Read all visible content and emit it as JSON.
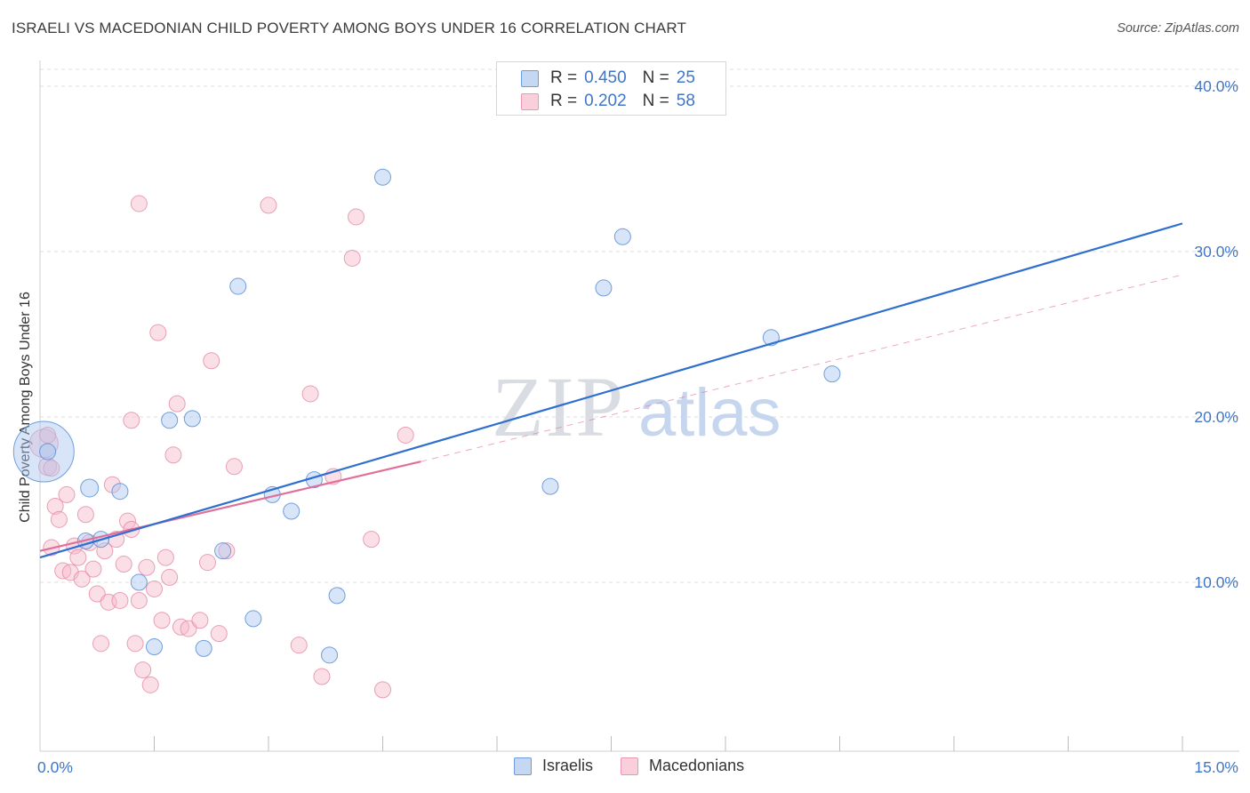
{
  "title": "ISRAELI VS MACEDONIAN CHILD POVERTY AMONG BOYS UNDER 16 CORRELATION CHART",
  "source": "Source: ZipAtlas.com",
  "legend_top": {
    "series1": {
      "r_label": "R =",
      "r_value": "0.450",
      "n_label": "N =",
      "n_value": "25",
      "color": "#a9c6ef"
    },
    "series2": {
      "r_label": "R =",
      "r_value": "0.202",
      "n_label": "N =",
      "n_value": "58",
      "color": "#f6b8ca"
    }
  },
  "legend_bottom": {
    "israelis": "Israelis",
    "macedonians": "Macedonians"
  },
  "watermark": {
    "zip": "ZIP",
    "atlas": "atlas"
  },
  "colors": {
    "blue_fill": "#a9c6ef",
    "blue_stroke": "#5b8fd6",
    "blue_line": "#2f6fcf",
    "pink_fill": "#f6b8ca",
    "pink_stroke": "#e58aa5",
    "pink_line": "#e0709a",
    "grid": "#dcdcdc",
    "tick_text": "#3f76c9"
  },
  "chart_data": {
    "type": "scatter",
    "title": "ISRAELI VS MACEDONIAN CHILD POVERTY AMONG BOYS UNDER 16 CORRELATION CHART",
    "xlabel": "",
    "ylabel": "Child Poverty Among Boys Under 16",
    "xlim": [
      0,
      15
    ],
    "ylim": [
      0,
      41
    ],
    "x_tick_labels": [
      "0.0%",
      "15.0%"
    ],
    "y_ticks": [
      10,
      20,
      30,
      40
    ],
    "y_tick_labels": [
      "10.0%",
      "20.0%",
      "30.0%",
      "40.0%"
    ],
    "grid": true,
    "series": [
      {
        "name": "Israelis",
        "points": [
          [
            0.05,
            17.9
          ],
          [
            0.65,
            15.7
          ],
          [
            0.6,
            12.5
          ],
          [
            0.8,
            12.6
          ],
          [
            1.05,
            15.5
          ],
          [
            1.3,
            10.0
          ],
          [
            1.5,
            6.1
          ],
          [
            1.7,
            19.8
          ],
          [
            2.0,
            19.9
          ],
          [
            2.15,
            6.0
          ],
          [
            2.4,
            11.9
          ],
          [
            2.6,
            27.9
          ],
          [
            2.8,
            7.8
          ],
          [
            3.05,
            15.3
          ],
          [
            3.3,
            14.3
          ],
          [
            3.6,
            16.2
          ],
          [
            3.8,
            5.6
          ],
          [
            3.9,
            9.2
          ],
          [
            4.5,
            34.5
          ],
          [
            6.7,
            15.8
          ],
          [
            7.4,
            27.8
          ],
          [
            7.65,
            30.9
          ],
          [
            9.6,
            24.8
          ],
          [
            10.4,
            22.6
          ],
          [
            0.1,
            17.9
          ]
        ],
        "sizes": [
          34,
          10,
          9,
          9,
          9,
          9,
          9,
          9,
          9,
          9,
          9,
          9,
          9,
          9,
          9,
          9,
          9,
          9,
          9,
          9,
          9,
          9,
          9,
          9,
          9
        ],
        "trend": {
          "x": [
            0,
            15
          ],
          "y": [
            11.5,
            31.7
          ],
          "style": "solid"
        }
      },
      {
        "name": "Macedonians",
        "points": [
          [
            0.05,
            18.4
          ],
          [
            0.1,
            17.0
          ],
          [
            0.15,
            12.1
          ],
          [
            0.2,
            14.6
          ],
          [
            0.25,
            13.8
          ],
          [
            0.3,
            10.7
          ],
          [
            0.35,
            15.3
          ],
          [
            0.4,
            10.6
          ],
          [
            0.45,
            12.2
          ],
          [
            0.5,
            11.5
          ],
          [
            0.55,
            10.2
          ],
          [
            0.6,
            14.1
          ],
          [
            0.65,
            12.4
          ],
          [
            0.7,
            10.8
          ],
          [
            0.75,
            9.3
          ],
          [
            0.8,
            6.3
          ],
          [
            0.85,
            11.9
          ],
          [
            0.9,
            8.8
          ],
          [
            0.95,
            15.9
          ],
          [
            1.0,
            12.6
          ],
          [
            1.05,
            8.9
          ],
          [
            1.1,
            11.1
          ],
          [
            1.15,
            13.7
          ],
          [
            1.2,
            13.2
          ],
          [
            1.25,
            6.3
          ],
          [
            1.3,
            8.9
          ],
          [
            1.35,
            4.7
          ],
          [
            1.4,
            10.9
          ],
          [
            1.45,
            3.8
          ],
          [
            1.5,
            9.6
          ],
          [
            1.55,
            25.1
          ],
          [
            1.6,
            7.7
          ],
          [
            1.65,
            11.5
          ],
          [
            1.7,
            10.3
          ],
          [
            1.75,
            17.7
          ],
          [
            1.8,
            20.8
          ],
          [
            1.85,
            7.3
          ],
          [
            1.95,
            7.2
          ],
          [
            2.1,
            7.7
          ],
          [
            2.2,
            11.2
          ],
          [
            2.25,
            23.4
          ],
          [
            2.35,
            6.9
          ],
          [
            2.45,
            11.9
          ],
          [
            2.55,
            17.0
          ],
          [
            1.3,
            32.9
          ],
          [
            3.0,
            32.8
          ],
          [
            3.4,
            6.2
          ],
          [
            3.55,
            21.4
          ],
          [
            3.7,
            4.3
          ],
          [
            3.85,
            16.4
          ],
          [
            4.1,
            29.6
          ],
          [
            4.15,
            32.1
          ],
          [
            4.35,
            12.6
          ],
          [
            4.5,
            3.5
          ],
          [
            4.8,
            18.9
          ],
          [
            0.1,
            18.9
          ],
          [
            0.15,
            16.9
          ],
          [
            1.2,
            19.8
          ]
        ],
        "sizes": [
          16,
          10,
          9,
          9,
          9,
          9,
          9,
          9,
          9,
          9,
          9,
          9,
          9,
          9,
          9,
          9,
          9,
          9,
          9,
          9,
          9,
          9,
          9,
          9,
          9,
          9,
          9,
          9,
          9,
          9,
          9,
          9,
          9,
          9,
          9,
          9,
          9,
          9,
          9,
          9,
          9,
          9,
          9,
          9,
          9,
          9,
          9,
          9,
          9,
          9,
          9,
          9,
          9,
          9,
          9,
          9,
          9,
          9
        ],
        "trend": {
          "x": [
            0,
            5.0
          ],
          "y": [
            11.9,
            17.3
          ],
          "style": "solid"
        },
        "trend_extension": {
          "x": [
            5.0,
            15
          ],
          "y": [
            17.3,
            28.6
          ],
          "style": "dashed"
        }
      }
    ]
  }
}
